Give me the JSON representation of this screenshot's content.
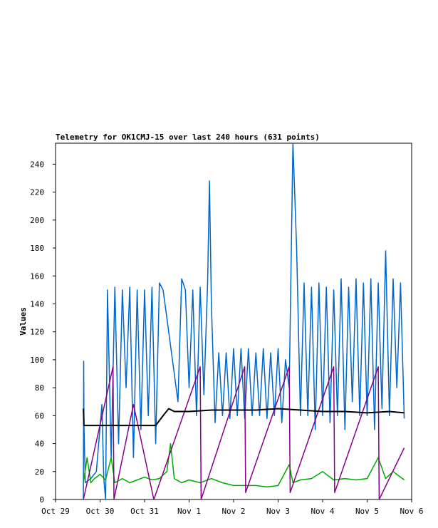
{
  "chart_data": {
    "type": "line",
    "title": "Telemetry for OK1CMJ-15 over last 240 hours (631 points)",
    "xlabel": "",
    "ylabel": "Values",
    "x_tick_labels": [
      "Oct 29",
      "Oct 30",
      "Oct 31",
      "Nov 1",
      "Nov 2",
      "Nov 3",
      "Nov 4",
      "Nov 5",
      "Nov 6"
    ],
    "xlim": [
      "Oct 29",
      "Nov 6"
    ],
    "ylim": [
      0,
      255
    ],
    "y_ticks": [
      0,
      20,
      40,
      60,
      80,
      100,
      120,
      140,
      160,
      180,
      200,
      220,
      240
    ],
    "grid": false,
    "legend": "none",
    "series": [
      {
        "color": "#0066cc",
        "points": [
          [
            "Oct 29 15:00",
            0
          ],
          [
            "Oct 29 15:10",
            99
          ],
          [
            "Oct 29 15:20",
            55
          ],
          [
            "Oct 29 16:00",
            12
          ],
          [
            "Oct 29 19:00",
            15
          ],
          [
            "Oct 29 22:00",
            20
          ],
          [
            "Oct 30 01:00",
            68
          ],
          [
            "Oct 30 02:00",
            15
          ],
          [
            "Oct 30 03:00",
            0
          ],
          [
            "Oct 30 04:00",
            150
          ],
          [
            "Oct 30 06:00",
            30
          ],
          [
            "Oct 30 08:00",
            152
          ],
          [
            "Oct 30 10:00",
            40
          ],
          [
            "Oct 30 12:00",
            150
          ],
          [
            "Oct 30 14:00",
            80
          ],
          [
            "Oct 30 16:00",
            152
          ],
          [
            "Oct 30 18:00",
            30
          ],
          [
            "Oct 30 20:00",
            150
          ],
          [
            "Oct 30 22:00",
            50
          ],
          [
            "Oct 31 00:00",
            150
          ],
          [
            "Oct 31 02:00",
            60
          ],
          [
            "Oct 31 04:00",
            152
          ],
          [
            "Oct 31 06:00",
            40
          ],
          [
            "Oct 31 08:00",
            155
          ],
          [
            "Oct 31 10:00",
            150
          ],
          [
            "Oct 31 12:00",
            130
          ],
          [
            "Oct 31 14:00",
            110
          ],
          [
            "Oct 31 16:00",
            90
          ],
          [
            "Oct 31 18:00",
            70
          ],
          [
            "Oct 31 20:00",
            158
          ],
          [
            "Oct 31 22:00",
            150
          ],
          [
            "Nov 1 00:00",
            80
          ],
          [
            "Nov 1 02:00",
            150
          ],
          [
            "Nov 1 04:00",
            60
          ],
          [
            "Nov 1 06:00",
            152
          ],
          [
            "Nov 1 08:00",
            75
          ],
          [
            "Nov 1 10:00",
            155
          ],
          [
            "Nov 1 11:00",
            228
          ],
          [
            "Nov 1 12:00",
            140
          ],
          [
            "Nov 1 14:00",
            55
          ],
          [
            "Nov 1 16:00",
            105
          ],
          [
            "Nov 1 18:00",
            60
          ],
          [
            "Nov 1 20:00",
            105
          ],
          [
            "Nov 1 22:00",
            58
          ],
          [
            "Nov 2 00:00",
            108
          ],
          [
            "Nov 2 02:00",
            60
          ],
          [
            "Nov 2 04:00",
            108
          ],
          [
            "Nov 2 06:00",
            58
          ],
          [
            "Nov 2 08:00",
            108
          ],
          [
            "Nov 2 10:00",
            60
          ],
          [
            "Nov 2 12:00",
            105
          ],
          [
            "Nov 2 14:00",
            60
          ],
          [
            "Nov 2 16:00",
            108
          ],
          [
            "Nov 2 18:00",
            58
          ],
          [
            "Nov 2 20:00",
            105
          ],
          [
            "Nov 2 22:00",
            60
          ],
          [
            "Nov 3 00:00",
            108
          ],
          [
            "Nov 3 02:00",
            55
          ],
          [
            "Nov 3 04:00",
            100
          ],
          [
            "Nov 3 06:00",
            80
          ],
          [
            "Nov 3 08:00",
            255
          ],
          [
            "Nov 3 10:00",
            180
          ],
          [
            "Nov 3 12:00",
            60
          ],
          [
            "Nov 3 14:00",
            155
          ],
          [
            "Nov 3 16:00",
            60
          ],
          [
            "Nov 3 18:00",
            152
          ],
          [
            "Nov 3 20:00",
            50
          ],
          [
            "Nov 3 22:00",
            155
          ],
          [
            "Nov 4 00:00",
            60
          ],
          [
            "Nov 4 02:00",
            152
          ],
          [
            "Nov 4 04:00",
            55
          ],
          [
            "Nov 4 06:00",
            150
          ],
          [
            "Nov 4 08:00",
            60
          ],
          [
            "Nov 4 10:00",
            158
          ],
          [
            "Nov 4 12:00",
            50
          ],
          [
            "Nov 4 14:00",
            152
          ],
          [
            "Nov 4 16:00",
            70
          ],
          [
            "Nov 4 18:00",
            158
          ],
          [
            "Nov 4 20:00",
            60
          ],
          [
            "Nov 4 22:00",
            155
          ],
          [
            "Nov 5 00:00",
            60
          ],
          [
            "Nov 5 02:00",
            158
          ],
          [
            "Nov 5 04:00",
            50
          ],
          [
            "Nov 5 06:00",
            155
          ],
          [
            "Nov 5 08:00",
            65
          ],
          [
            "Nov 5 10:00",
            178
          ],
          [
            "Nov 5 12:00",
            60
          ],
          [
            "Nov 5 14:00",
            158
          ],
          [
            "Nov 5 16:00",
            80
          ],
          [
            "Nov 5 18:00",
            155
          ],
          [
            "Nov 5 20:00",
            58
          ]
        ]
      },
      {
        "color": "#00aa00",
        "points": [
          [
            "Oct 29 15:00",
            12
          ],
          [
            "Oct 29 17:00",
            30
          ],
          [
            "Oct 29 19:00",
            12
          ],
          [
            "Oct 29 21:00",
            15
          ],
          [
            "Oct 30 00:00",
            18
          ],
          [
            "Oct 30 03:00",
            14
          ],
          [
            "Oct 30 06:00",
            30
          ],
          [
            "Oct 30 08:00",
            12
          ],
          [
            "Oct 30 12:00",
            15
          ],
          [
            "Oct 30 16:00",
            12
          ],
          [
            "Oct 30 20:00",
            14
          ],
          [
            "Oct 31 00:00",
            16
          ],
          [
            "Oct 31 04:00",
            14
          ],
          [
            "Oct 31 08:00",
            15
          ],
          [
            "Oct 31 12:00",
            20
          ],
          [
            "Oct 31 14:00",
            40
          ],
          [
            "Oct 31 16:00",
            15
          ],
          [
            "Oct 31 20:00",
            12
          ],
          [
            "Nov 1 00:00",
            14
          ],
          [
            "Nov 1 06:00",
            12
          ],
          [
            "Nov 1 12:00",
            15
          ],
          [
            "Nov 1 18:00",
            12
          ],
          [
            "Nov 2 00:00",
            10
          ],
          [
            "Nov 2 06:00",
            10
          ],
          [
            "Nov 2 12:00",
            10
          ],
          [
            "Nov 2 18:00",
            9
          ],
          [
            "Nov 3 00:00",
            10
          ],
          [
            "Nov 3 06:00",
            25
          ],
          [
            "Nov 3 08:00",
            12
          ],
          [
            "Nov 3 12:00",
            14
          ],
          [
            "Nov 3 18:00",
            15
          ],
          [
            "Nov 4 00:00",
            20
          ],
          [
            "Nov 4 06:00",
            14
          ],
          [
            "Nov 4 12:00",
            15
          ],
          [
            "Nov 4 18:00",
            14
          ],
          [
            "Nov 5 00:00",
            15
          ],
          [
            "Nov 5 06:00",
            30
          ],
          [
            "Nov 5 10:00",
            15
          ],
          [
            "Nov 5 14:00",
            20
          ],
          [
            "Nov 5 20:00",
            14
          ]
        ]
      },
      {
        "color": "#880088",
        "points": [
          [
            "Oct 29 15:00",
            0
          ],
          [
            "Oct 30 07:00",
            95
          ],
          [
            "Oct 30 07:30",
            0
          ],
          [
            "Oct 30 18:00",
            68
          ],
          [
            "Oct 31 05:00",
            0
          ],
          [
            "Nov 1 06:00",
            95
          ],
          [
            "Nov 1 06:30",
            0
          ],
          [
            "Nov 2 06:00",
            95
          ],
          [
            "Nov 2 06:30",
            5
          ],
          [
            "Nov 3 06:00",
            95
          ],
          [
            "Nov 3 06:30",
            5
          ],
          [
            "Nov 4 06:00",
            95
          ],
          [
            "Nov 4 06:30",
            5
          ],
          [
            "Nov 5 06:00",
            95
          ],
          [
            "Nov 5 06:30",
            0
          ],
          [
            "Nov 5 20:00",
            37
          ]
        ]
      },
      {
        "color": "#000000",
        "points": [
          [
            "Oct 29 15:00",
            65
          ],
          [
            "Oct 29 15:20",
            53
          ],
          [
            "Oct 30 00:00",
            53
          ],
          [
            "Oct 30 12:00",
            53
          ],
          [
            "Oct 31 00:00",
            53
          ],
          [
            "Oct 31 06:00",
            53
          ],
          [
            "Oct 31 10:00",
            60
          ],
          [
            "Oct 31 13:00",
            65
          ],
          [
            "Oct 31 16:00",
            63
          ],
          [
            "Nov 1 00:00",
            63
          ],
          [
            "Nov 1 12:00",
            64
          ],
          [
            "Nov 2 00:00",
            64
          ],
          [
            "Nov 2 12:00",
            64
          ],
          [
            "Nov 3 00:00",
            65
          ],
          [
            "Nov 3 12:00",
            64
          ],
          [
            "Nov 4 00:00",
            63
          ],
          [
            "Nov 4 12:00",
            63
          ],
          [
            "Nov 5 00:00",
            62
          ],
          [
            "Nov 5 12:00",
            63
          ],
          [
            "Nov 5 20:00",
            62
          ]
        ]
      }
    ]
  }
}
